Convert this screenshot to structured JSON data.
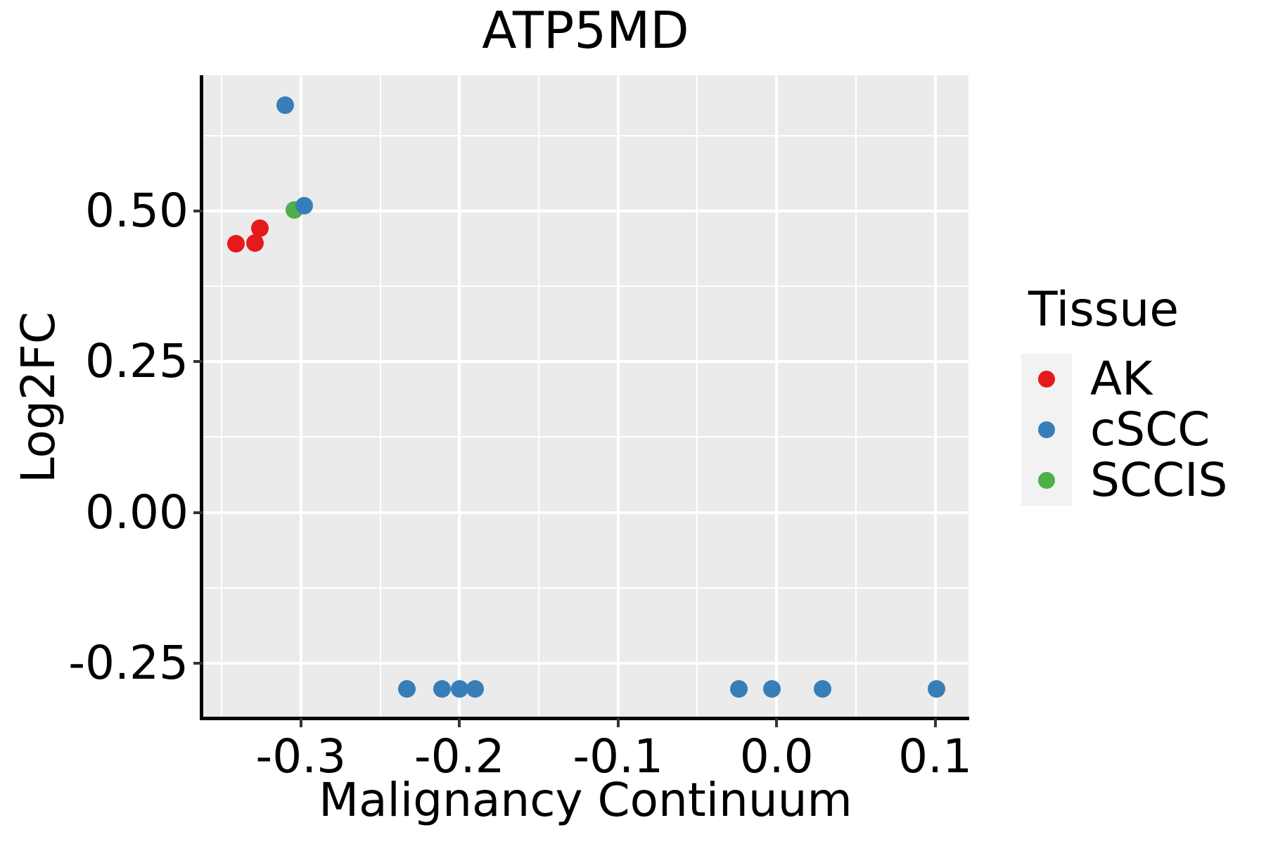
{
  "chart_data": {
    "type": "scatter",
    "title": "ATP5MD",
    "xlabel": "Malignancy Continuum",
    "ylabel": "Log2FC",
    "legend_title": "Tissue",
    "legend_position": "right",
    "grid": "white-on-gray-panel",
    "xlim": [
      -0.362,
      0.121
    ],
    "ylim": [
      -0.341,
      0.725
    ],
    "x_ticks": {
      "values": [
        -0.3,
        -0.2,
        -0.1,
        0.0,
        0.1
      ],
      "labels": [
        "-0.3",
        "-0.2",
        "-0.1",
        "0.0",
        "0.1"
      ],
      "minor": [
        -0.35,
        -0.25,
        -0.15,
        -0.05,
        0.05
      ]
    },
    "y_ticks": {
      "values": [
        0.5,
        0.25,
        0.0,
        -0.25
      ],
      "labels": [
        "0.50",
        "0.25",
        "0.00",
        "-0.25"
      ],
      "minor": [
        0.625,
        0.375,
        0.125,
        -0.125
      ]
    },
    "legend": [
      {
        "label": "AK",
        "color": "#E41A1C",
        "swatch": "dot-icon"
      },
      {
        "label": "cSCC",
        "color": "#377EB8",
        "swatch": "dot-icon"
      },
      {
        "label": "SCCIS",
        "color": "#4DAF4A",
        "swatch": "dot-icon"
      }
    ],
    "series": [
      {
        "name": "AK",
        "color": "#E41A1C",
        "points": [
          [
            -0.341,
            0.446
          ],
          [
            -0.329,
            0.447
          ],
          [
            -0.326,
            0.471
          ]
        ]
      },
      {
        "name": "SCCIS",
        "color": "#4DAF4A",
        "points": [
          [
            -0.304,
            0.502
          ]
        ]
      },
      {
        "name": "cSCC",
        "color": "#377EB8",
        "points": [
          [
            -0.31,
            0.675
          ],
          [
            -0.298,
            0.509
          ],
          [
            -0.233,
            -0.293
          ],
          [
            -0.211,
            -0.293
          ],
          [
            -0.2,
            -0.293
          ],
          [
            -0.19,
            -0.293
          ],
          [
            -0.024,
            -0.293
          ],
          [
            -0.003,
            -0.293
          ],
          [
            0.029,
            -0.293
          ],
          [
            0.101,
            -0.293
          ]
        ]
      }
    ]
  },
  "colors": {
    "panel_background": "#EBEBEB",
    "major_gridline": "#FFFFFF",
    "minor_gridline": "#FFFFFF",
    "legend_key_background": "#F2F2F2",
    "axis_line": "#000000",
    "tick_mark": "#333333",
    "text": "#000000"
  }
}
